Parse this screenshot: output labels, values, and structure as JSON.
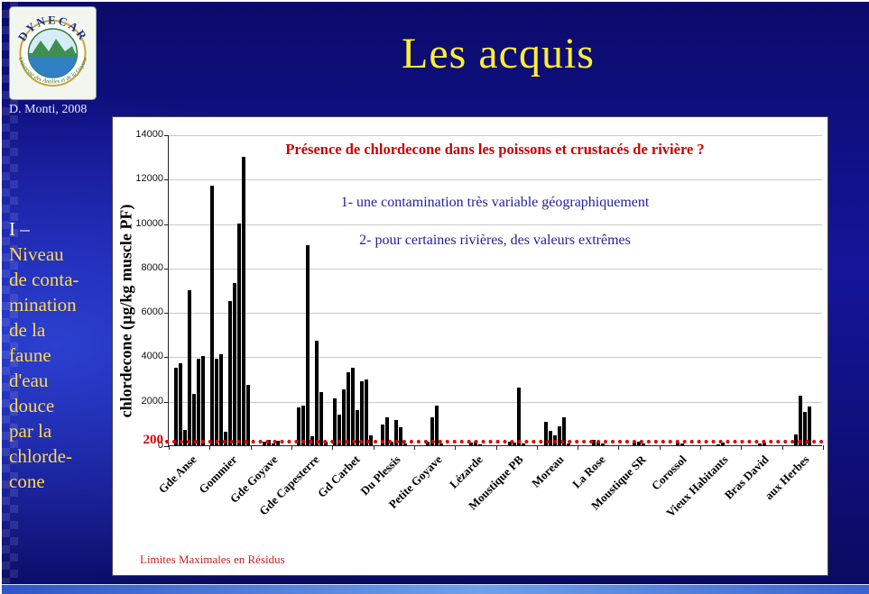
{
  "slide": {
    "title": "Les acquis",
    "credit": "D. Monti, 2008",
    "side_note": {
      "lines": [
        "I –",
        "Niveau",
        "de conta-",
        "mination",
        "de la",
        "faune",
        "d'eau",
        "douce",
        "par la",
        "chlorde-",
        "cone"
      ]
    }
  },
  "logo": {
    "title": "DYNECAR",
    "subtitle": "Université des Antilles et de la Guyane"
  },
  "colors": {
    "slide_title": "#ffee33",
    "side_text": "#ffd94d",
    "chart_title": "#cc0000",
    "annotation_text": "#1f1f9c",
    "threshold_line": "#e00000",
    "bar": "#000000",
    "background_blue": "#15159a"
  },
  "chart_data": {
    "type": "bar",
    "title": "Présence de chlordecone dans les poissons et crustacés de rivière ?",
    "annotations": [
      "1- une contamination très variable géographiquement",
      "2- pour certaines rivières, des valeurs extrêmes"
    ],
    "ylabel": "chlordecone (µg/kg muscle PF)",
    "xlabel": "",
    "ylim": [
      0,
      14000
    ],
    "ytick_step": 2000,
    "grid": true,
    "legend": false,
    "threshold": {
      "value": 200,
      "label": "200",
      "note": "Limites Maximales en Résidus"
    },
    "categories": [
      "Gde Anse",
      "Gommier",
      "Gde Goyave",
      "Gde Capesterre",
      "Gd Carbet",
      "Du Plessis",
      "Petite Goyave",
      "Lézarde",
      "Moustique PB",
      "Moreau",
      "La Rose",
      "Moustique SR",
      "Corossol",
      "Vieux Habitants",
      "Bras David",
      "aux Herbes"
    ],
    "values": [
      [
        3500,
        3700,
        700,
        7000,
        2300,
        3900,
        4000
      ],
      [
        11700,
        3900,
        4100,
        600,
        6500,
        7300,
        10000,
        13000,
        2700
      ],
      [
        150,
        250,
        100,
        200
      ],
      [
        1700,
        1800,
        9000,
        400,
        4700,
        2400,
        150
      ],
      [
        2100,
        1400,
        2500,
        3300,
        3500,
        1600,
        2900,
        2950,
        450
      ],
      [
        950,
        1250,
        150,
        1150,
        800,
        100
      ],
      [
        150,
        1250,
        1800,
        100
      ],
      [
        120,
        180,
        60
      ],
      [
        180,
        120,
        2600,
        100
      ],
      [
        1050,
        650,
        450,
        850,
        1250,
        100
      ],
      [
        250,
        180,
        90
      ],
      [
        120,
        160,
        80
      ],
      [
        140,
        70
      ],
      [
        60,
        120
      ],
      [
        70,
        130
      ],
      [
        500,
        2250,
        1500,
        1750
      ]
    ]
  }
}
